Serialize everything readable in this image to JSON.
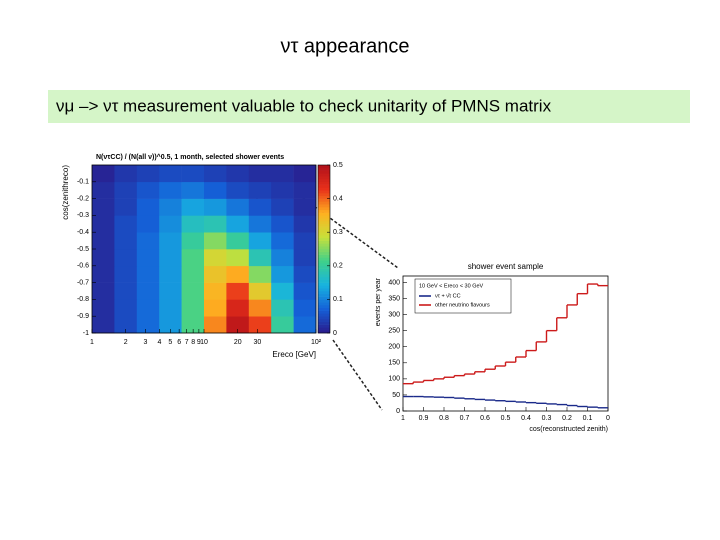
{
  "title": "ντ appearance",
  "subtitle": "νμ –> ντ measurement valuable to check unitarity of PMNS matrix",
  "chart_data": [
    {
      "type": "heatmap",
      "title": "N(ντCC) / (N(all ν))^0.5, 1 month, selected shower events",
      "x_label": "Ereco [GeV]",
      "y_label": "cos(zenithreco)",
      "log_x": true,
      "xlim": [
        1,
        100
      ],
      "xticks": [
        1,
        2,
        3,
        4,
        5,
        6,
        7,
        8,
        9,
        10,
        20,
        30,
        {
          "value": 100,
          "label": "10²"
        }
      ],
      "ylim": [
        -1,
        0
      ],
      "yticks": [
        -1,
        -0.9,
        -0.8,
        -0.7,
        -0.6,
        -0.5,
        -0.4,
        -0.3,
        -0.2,
        -0.1
      ],
      "zlim": [
        0,
        0.5
      ],
      "zticks": [
        0,
        0.1,
        0.2,
        0.3,
        0.4,
        0.5
      ],
      "colorscale": [
        "#2a1a8a",
        "#1560d8",
        "#17b3e0",
        "#3fd18a",
        "#c8e03a",
        "#ffb020",
        "#e8301a",
        "#b0101a"
      ],
      "x_bins": [
        1,
        1.585,
        2.512,
        3.981,
        6.31,
        10,
        15.85,
        25.12,
        39.81,
        63.1,
        100
      ],
      "y_bins": [
        -1,
        -0.9,
        -0.8,
        -0.7,
        -0.6,
        -0.5,
        -0.4,
        -0.3,
        -0.2,
        -0.1,
        0
      ],
      "values": [
        [
          0.02,
          0.05,
          0.08,
          0.12,
          0.22,
          0.38,
          0.48,
          0.42,
          0.2,
          0.08
        ],
        [
          0.02,
          0.05,
          0.08,
          0.12,
          0.22,
          0.36,
          0.45,
          0.38,
          0.18,
          0.07
        ],
        [
          0.02,
          0.05,
          0.08,
          0.12,
          0.22,
          0.35,
          0.42,
          0.32,
          0.15,
          0.06
        ],
        [
          0.02,
          0.05,
          0.08,
          0.12,
          0.22,
          0.33,
          0.36,
          0.25,
          0.12,
          0.05
        ],
        [
          0.02,
          0.05,
          0.08,
          0.12,
          0.22,
          0.3,
          0.28,
          0.18,
          0.1,
          0.04
        ],
        [
          0.02,
          0.05,
          0.08,
          0.12,
          0.2,
          0.25,
          0.2,
          0.13,
          0.08,
          0.04
        ],
        [
          0.02,
          0.05,
          0.07,
          0.11,
          0.17,
          0.18,
          0.13,
          0.09,
          0.06,
          0.03
        ],
        [
          0.02,
          0.04,
          0.07,
          0.1,
          0.13,
          0.12,
          0.09,
          0.06,
          0.04,
          0.02
        ],
        [
          0.02,
          0.04,
          0.06,
          0.08,
          0.09,
          0.07,
          0.05,
          0.04,
          0.03,
          0.02
        ],
        [
          0.01,
          0.03,
          0.04,
          0.05,
          0.05,
          0.04,
          0.03,
          0.02,
          0.02,
          0.01
        ]
      ]
    },
    {
      "type": "histogram",
      "title": "shower event sample",
      "x_label": "cos(reconstructed zenith)",
      "y_label": "events per year",
      "legend_title": "10 GeV < Ereco < 30 GeV",
      "xlim": [
        1,
        0
      ],
      "xticks": [
        1,
        0.9,
        0.8,
        0.7,
        0.6,
        0.5,
        0.4,
        0.3,
        0.2,
        0.1,
        0
      ],
      "ylim": [
        0,
        420
      ],
      "yticks": [
        0,
        50,
        100,
        150,
        200,
        250,
        300,
        350,
        400
      ],
      "bins": [
        1,
        0.95,
        0.9,
        0.85,
        0.8,
        0.75,
        0.7,
        0.65,
        0.6,
        0.55,
        0.5,
        0.45,
        0.4,
        0.35,
        0.3,
        0.25,
        0.2,
        0.15,
        0.1,
        0.05,
        0
      ],
      "series": [
        {
          "name": "ντ + ν̄τ CC",
          "color": "#1a2a8a",
          "values": [
            45,
            45,
            44,
            43,
            42,
            40,
            38,
            36,
            34,
            32,
            30,
            28,
            26,
            24,
            22,
            20,
            17,
            14,
            12,
            10
          ]
        },
        {
          "name": "other neutrino flavours",
          "color": "#cc1a1a",
          "values": [
            85,
            90,
            95,
            100,
            105,
            110,
            115,
            122,
            130,
            140,
            152,
            168,
            188,
            215,
            250,
            290,
            330,
            365,
            395,
            390
          ]
        }
      ]
    }
  ]
}
